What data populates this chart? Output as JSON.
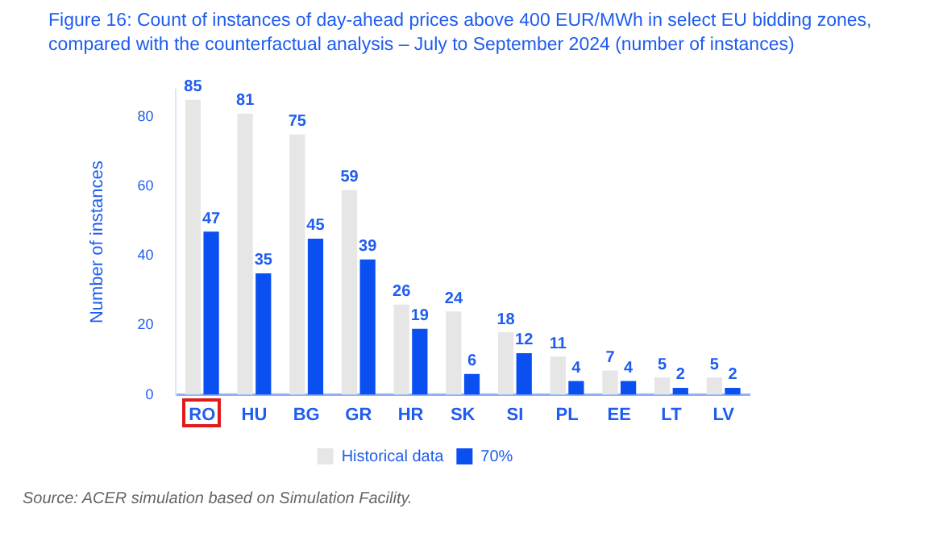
{
  "chart_data": {
    "type": "bar",
    "title": "Figure 16: Count of instances of day-ahead prices above 400 EUR/MWh in select EU bidding zones, compared with the counterfactual analysis – July to September 2024 (number of instances)",
    "ylabel": "Number of instances",
    "categories": [
      "RO",
      "HU",
      "BG",
      "GR",
      "HR",
      "SK",
      "SI",
      "PL",
      "EE",
      "LT",
      "LV"
    ],
    "series": [
      {
        "name": "Historical data",
        "color": "#e6e6e6",
        "values": [
          85,
          81,
          75,
          59,
          26,
          24,
          18,
          11,
          7,
          5,
          5
        ]
      },
      {
        "name": "70%",
        "color": "#0a4ff0",
        "values": [
          47,
          35,
          45,
          39,
          19,
          6,
          12,
          4,
          4,
          2,
          2
        ]
      }
    ],
    "ylim": [
      0,
      88
    ],
    "yticks": [
      0,
      20,
      40,
      60,
      80
    ],
    "grid": false,
    "legend": "bottom",
    "data_labels": true,
    "annotations": [
      "Source: ACER simulation based on Simulation Facility."
    ]
  }
}
